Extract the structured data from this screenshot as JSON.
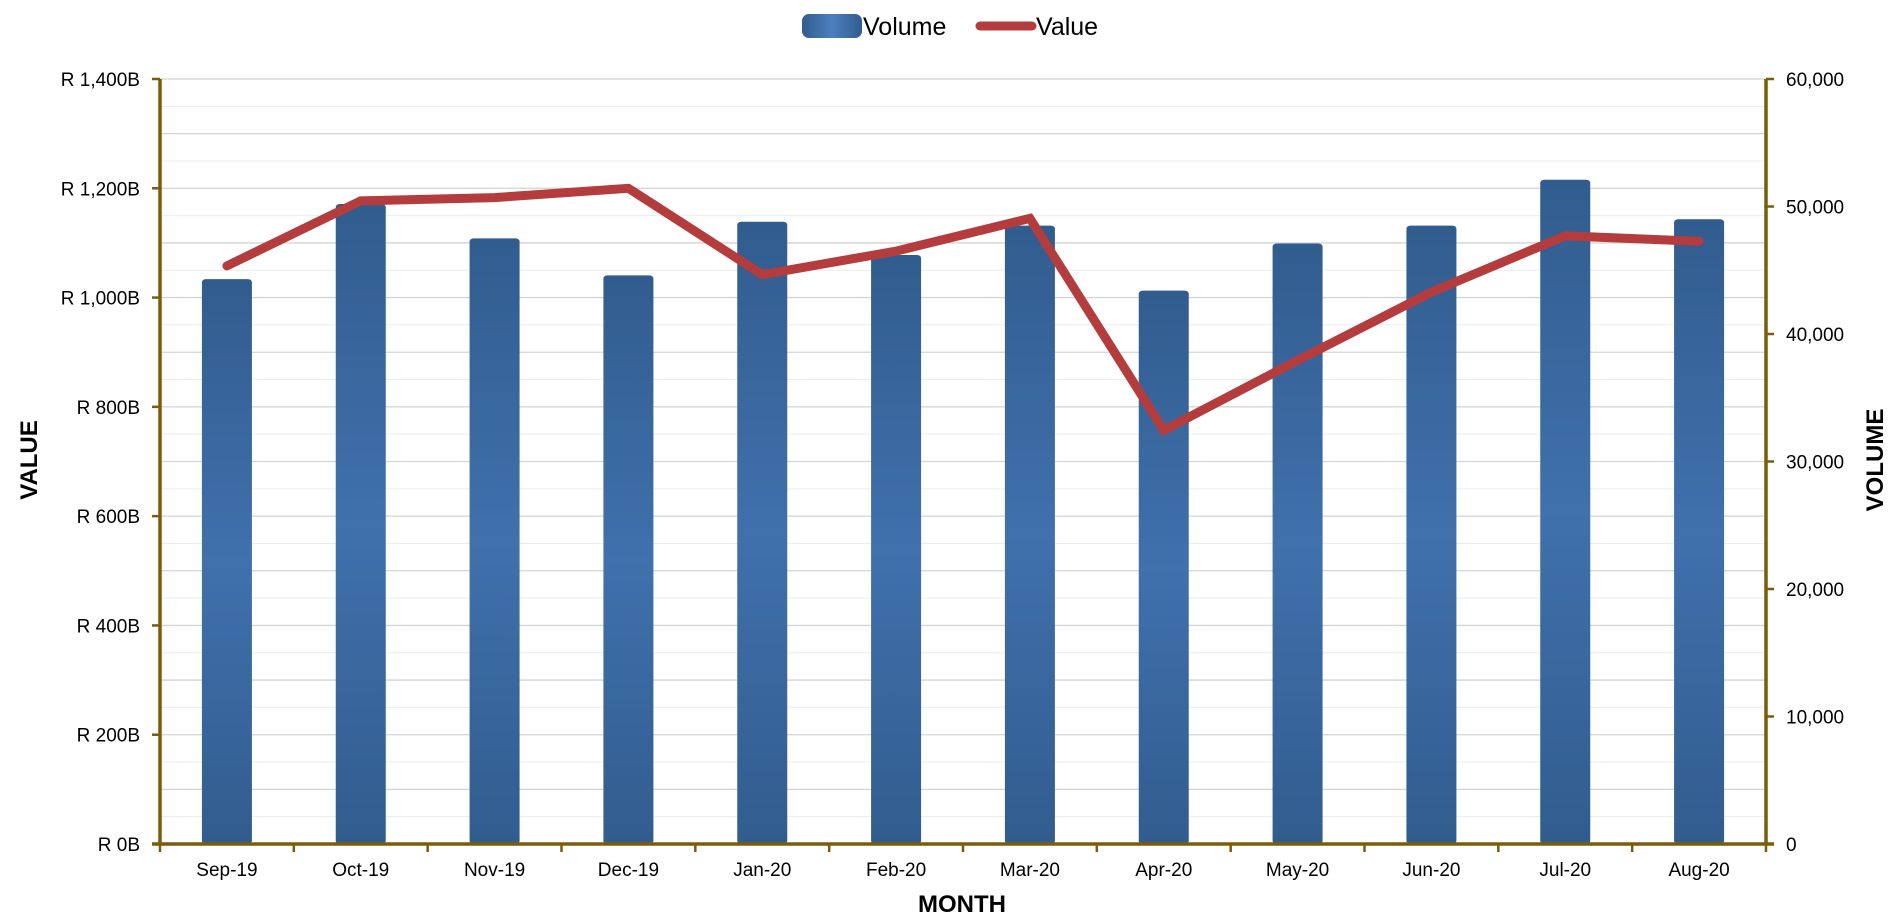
{
  "chart_data": {
    "type": "bar",
    "title": "",
    "xlabel": "MONTH",
    "ylabel_left": "VALUE",
    "ylabel_right": "VOLUME",
    "categories": [
      "Sep-19",
      "Oct-19",
      "Nov-19",
      "Dec-19",
      "Jan-20",
      "Feb-20",
      "Mar-20",
      "Apr-20",
      "May-20",
      "Jun-20",
      "Jul-20",
      "Aug-20"
    ],
    "series": [
      {
        "name": "Volume",
        "type": "bar",
        "axis": "right",
        "color": "#3f6fa8",
        "values": [
          44300,
          50200,
          47500,
          44600,
          48800,
          46200,
          48500,
          43400,
          47100,
          48500,
          52100,
          49000
        ]
      },
      {
        "name": "Value",
        "type": "line",
        "axis": "left",
        "color": "#b43c3c",
        "values": [
          1058,
          1177,
          1183,
          1200,
          1042,
          1085,
          1145,
          757,
          885,
          1010,
          1113,
          1103
        ]
      }
    ],
    "y_left": {
      "min": 0,
      "max": 1400,
      "ticks": [
        0,
        200,
        400,
        600,
        800,
        1000,
        1200,
        1400
      ],
      "tick_labels": [
        "R 0B",
        "R 200B",
        "R 400B",
        "R 600B",
        "R 800B",
        "R 1,000B",
        "R 1,200B",
        "R 1,400B"
      ]
    },
    "y_right": {
      "min": 0,
      "max": 60000,
      "ticks": [
        0,
        10000,
        20000,
        30000,
        40000,
        50000,
        60000
      ],
      "tick_labels": [
        "0",
        "10,000",
        "20,000",
        "30,000",
        "40,000",
        "50,000",
        "60,000"
      ]
    },
    "grid": true,
    "legend_position": "top-center",
    "axis_color": "#7a5c0a"
  }
}
